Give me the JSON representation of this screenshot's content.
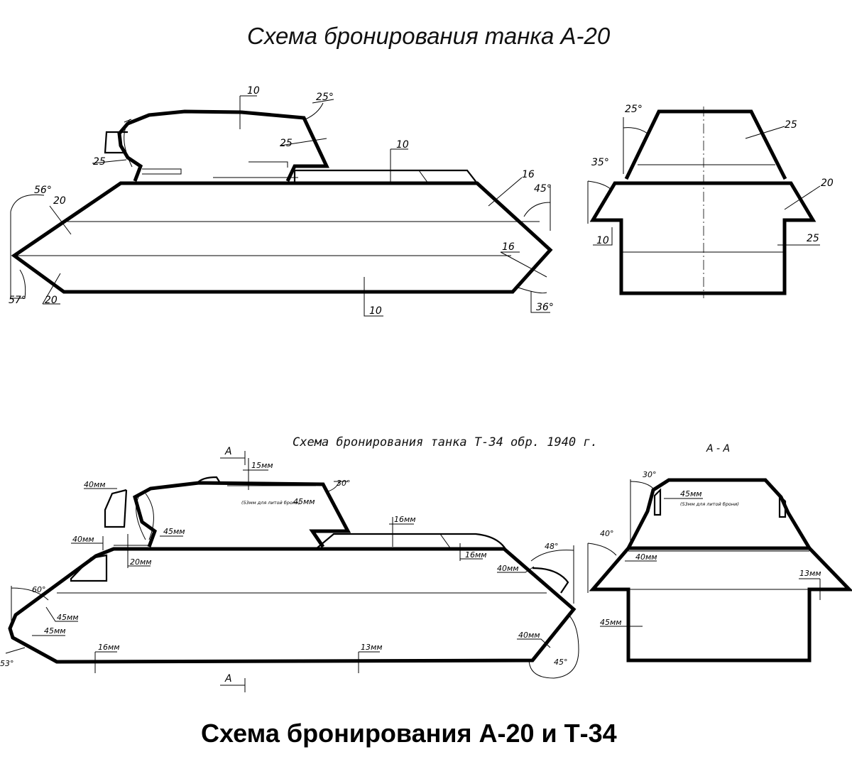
{
  "title_top": "Схема бронирования танка А-20",
  "title_mid": "Схема бронирования танка Т-34 обр. 1940 г.",
  "section_label": "А - А",
  "title_bottom": "Схема бронирования А-20 и Т-34",
  "a20_side": {
    "turret_roof": "10",
    "turret_rear_angle": "25°",
    "turret_rear": "25",
    "gun_mantlet": "25",
    "upper_front_angle": "56°",
    "upper_front": "20",
    "lower_front_angle": "57°",
    "lower_front": "20",
    "upper_rear": "16",
    "upper_rear_angle": "45°",
    "lower_rear": "16",
    "lower_rear_angle": "36°",
    "bottom": "10",
    "deck": "10"
  },
  "a20_section": {
    "turret_angle": "25°",
    "turret_side": "25",
    "sponson_angle": "35°",
    "sponson_side": "20",
    "lower_side_left": "10",
    "lower_side_right": "25"
  },
  "t34_side": {
    "section_mark": "А",
    "turret_roof": "15мм",
    "turret_cast_note": "(53мм для литой брони)",
    "turret_side": "45мм",
    "turret_rear_angle": "30°",
    "gun_mantlet": "40мм",
    "mantlet_side": "40мм",
    "turret_front": "45мм",
    "driver_hatch": "20мм",
    "engine_deck": "16мм",
    "deck_rear": "16мм",
    "upper_rear": "40мм",
    "upper_rear_angle": "48°",
    "upper_front_angle": "60°",
    "upper_front": "45мм",
    "lower_front": "45мм",
    "lower_front_angle": "53°",
    "bottom_front": "16мм",
    "bottom_rear": "13мм",
    "lower_rear": "40мм",
    "lower_rear_angle": "45°"
  },
  "t34_section": {
    "turret_angle": "30°",
    "turret_side": "45мм",
    "turret_cast_note": "(53мм для литой брони)",
    "sponson_angle": "40°",
    "sponson_side": "40мм",
    "upper_side": "13мм",
    "lower_side": "45мм"
  }
}
